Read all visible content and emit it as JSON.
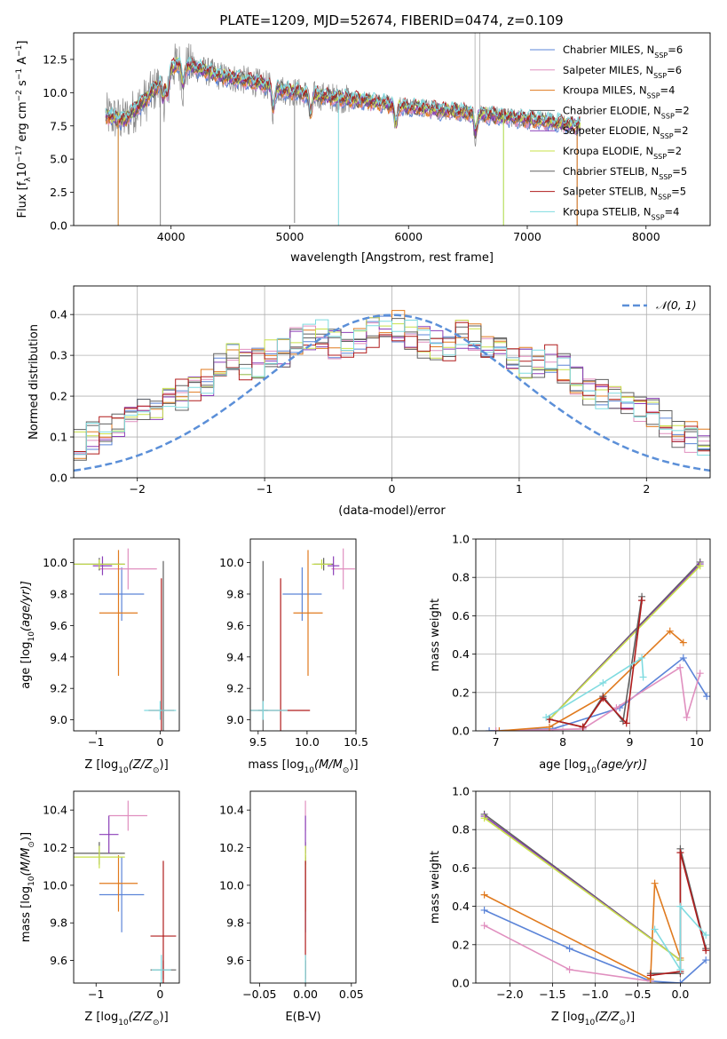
{
  "figure_title": "PLATE=1209, MJD=52674, FIBERID=0474, z=0.109",
  "colors": {
    "chabrier_miles": "#5b84d8",
    "salpeter_miles": "#e08fbf",
    "kroupa_miles": "#e07a1e",
    "chabrier_elodie": "#5f5f5f",
    "salpeter_elodie": "#8b3fb8",
    "kroupa_elodie": "#c8e14a",
    "chabrier_stelib": "#606060",
    "salpeter_stelib": "#b01c1c",
    "kroupa_stelib": "#7fdbe0",
    "data": "#888888",
    "normal": "#5b8fd8"
  },
  "chart_data": [
    {
      "type": "line",
      "panel": "spectrum",
      "xlabel": "wavelength [Angstrom, rest frame]",
      "ylabel_parts": [
        "Flux [f",
        "λ",
        "10",
        "−17",
        " erg cm",
        "−2",
        " s",
        "−1",
        " A",
        "−1",
        "]"
      ],
      "xlim": [
        3180,
        8540
      ],
      "ylim": [
        0,
        14.5
      ],
      "xticks": [
        4000,
        5000,
        6000,
        7000,
        8000
      ],
      "yticks": [
        0.0,
        2.5,
        5.0,
        7.5,
        10.0,
        12.5
      ],
      "grid": false,
      "legend_position": "top-right",
      "legend": [
        {
          "main": "Chabrier MILES, N",
          "sub": "SSP",
          "tail": "=6",
          "key": "chabrier_miles"
        },
        {
          "main": "Salpeter MILES, N",
          "sub": "SSP",
          "tail": "=6",
          "key": "salpeter_miles"
        },
        {
          "main": "Kroupa MILES, N",
          "sub": "SSP",
          "tail": "=4",
          "key": "kroupa_miles"
        },
        {
          "main": "Chabrier ELODIE, N",
          "sub": "SSP",
          "tail": "=2",
          "key": "chabrier_elodie"
        },
        {
          "main": "Salpeter ELODIE, N",
          "sub": "SSP",
          "tail": "=2",
          "key": "salpeter_elodie"
        },
        {
          "main": "Kroupa ELODIE, N",
          "sub": "SSP",
          "tail": "=2",
          "key": "kroupa_elodie"
        },
        {
          "main": "Chabrier STELIB, N",
          "sub": "SSP",
          "tail": "=5",
          "key": "chabrier_stelib"
        },
        {
          "main": "Salpeter STELIB, N",
          "sub": "SSP",
          "tail": "=5",
          "key": "salpeter_stelib"
        },
        {
          "main": "Kroupa STELIB, N",
          "sub": "SSP",
          "tail": "=4",
          "key": "kroupa_stelib"
        }
      ],
      "continuum": {
        "x": [
          3450,
          3600,
          3800,
          3950,
          4050,
          4200,
          4400,
          4700,
          5000,
          5300,
          5600,
          6000,
          6500,
          6800,
          7000,
          7200,
          7450
        ],
        "y": [
          8.3,
          7.9,
          9.6,
          11.2,
          12.2,
          11.9,
          11.3,
          10.8,
          10.1,
          9.7,
          9.4,
          8.9,
          8.5,
          8.2,
          8.0,
          7.8,
          7.5
        ]
      },
      "absorption_x": [
        3934,
        3969,
        4102,
        4861,
        5175,
        5893,
        6563
      ],
      "spikes": [
        {
          "x": 5040,
          "y_min": 0.2
        },
        {
          "x": 5410,
          "y_min": 0.0
        },
        {
          "x": 3910,
          "y_min": 0.0
        },
        {
          "x": 6800,
          "y_min": 0.0
        },
        {
          "x": 7420,
          "y_min": 0.0
        },
        {
          "x": 3555,
          "y_min": 0.0
        }
      ],
      "data_spikes_up": [
        {
          "x": 6560,
          "y_max": 14.5
        },
        {
          "x": 6600,
          "y_max": 14.5
        }
      ]
    },
    {
      "type": "step",
      "panel": "residuals",
      "xlabel": "(data-model)/error",
      "ylabel": "Normed distribution",
      "xlim": [
        -2.5,
        2.5
      ],
      "ylim": [
        0,
        0.47
      ],
      "xticks": [
        -2,
        -1,
        0,
        1,
        2
      ],
      "yticks": [
        0.0,
        0.1,
        0.2,
        0.3,
        0.4
      ],
      "grid": true,
      "legend_position": "top-right",
      "legend_label": "𝒩(0, 1)",
      "bin_edges_start": -2.5,
      "bin_width": 0.1,
      "base_profile": [
        0.033,
        0.04,
        0.05,
        0.082,
        0.11,
        0.1,
        0.098,
        0.113,
        0.135,
        0.15,
        0.166,
        0.218,
        0.238,
        0.19,
        0.208,
        0.237,
        0.25,
        0.295,
        0.29,
        0.27,
        0.258,
        0.265,
        0.305,
        0.325,
        0.36,
        0.383,
        0.38,
        0.36,
        0.38,
        0.395,
        0.43,
        0.405,
        0.375,
        0.365,
        0.375,
        0.36,
        0.365,
        0.34,
        0.325,
        0.305,
        0.278,
        0.27,
        0.26,
        0.255,
        0.24,
        0.215,
        0.18,
        0.17,
        0.155,
        0.13
      ]
    },
    {
      "type": "errorbar",
      "panel": "age_vs_Z",
      "xlabel_parts": [
        "Z [log",
        "10",
        "(Z/Z",
        "⊙",
        ")]"
      ],
      "ylabel_parts": [
        "age  [log",
        "10",
        "(age/yr)]"
      ],
      "xlim": [
        -1.35,
        0.3
      ],
      "ylim": [
        8.93,
        10.15
      ],
      "xticks": [
        -1,
        0
      ],
      "yticks": [
        9.0,
        9.2,
        9.4,
        9.6,
        9.8,
        10.0
      ],
      "points": [
        {
          "key": "chabrier_miles",
          "x": -0.6,
          "xerr": 0.35,
          "y": 9.8,
          "yerr": 0.17
        },
        {
          "key": "salpeter_miles",
          "x": -0.5,
          "xerr": 0.45,
          "y": 9.96,
          "yerr": 0.13
        },
        {
          "key": "kroupa_miles",
          "x": -0.65,
          "xerr": 0.3,
          "y": 9.68,
          "yerr": 0.4
        },
        {
          "key": "chabrier_elodie",
          "x": -0.95,
          "xerr": 0.4,
          "y": 9.99,
          "yerr": 0.04
        },
        {
          "key": "salpeter_elodie",
          "x": -0.9,
          "xerr": 0.15,
          "y": 9.98,
          "yerr": 0.06
        },
        {
          "key": "kroupa_elodie",
          "x": -0.95,
          "xerr": 0.4,
          "y": 9.99,
          "yerr": 0.03
        },
        {
          "key": "chabrier_stelib",
          "x": 0.05,
          "xerr": 0.02,
          "y": 9.06,
          "yerr": 0.95
        },
        {
          "key": "salpeter_stelib",
          "x": 0.02,
          "xerr": 0.2,
          "y": 9.06,
          "yerr": 0.84
        },
        {
          "key": "kroupa_stelib",
          "x": 0.0,
          "xerr": 0.25,
          "y": 9.06,
          "yerr": 0.06
        }
      ]
    },
    {
      "type": "errorbar",
      "panel": "age_vs_mass",
      "xlabel_parts": [
        "mass [log",
        "10",
        "(M/M",
        "⊙",
        ")]"
      ],
      "xlim": [
        9.42,
        10.5
      ],
      "ylim": [
        8.93,
        10.15
      ],
      "xticks": [
        9.5,
        10.0,
        10.5
      ],
      "xtick_labels": [
        "9.5",
        "10.0",
        "10.5"
      ],
      "yticks": [
        9.0,
        9.2,
        9.4,
        9.6,
        9.8,
        10.0
      ],
      "points": [
        {
          "key": "chabrier_miles",
          "x": 9.95,
          "xerr": 0.2,
          "y": 9.8,
          "yerr": 0.17
        },
        {
          "key": "salpeter_miles",
          "x": 10.37,
          "xerr": 0.12,
          "y": 9.96,
          "yerr": 0.13
        },
        {
          "key": "kroupa_miles",
          "x": 10.01,
          "xerr": 0.15,
          "y": 9.68,
          "yerr": 0.4
        },
        {
          "key": "chabrier_elodie",
          "x": 10.17,
          "xerr": 0.1,
          "y": 9.99,
          "yerr": 0.04
        },
        {
          "key": "salpeter_elodie",
          "x": 10.27,
          "xerr": 0.06,
          "y": 9.98,
          "yerr": 0.06
        },
        {
          "key": "kroupa_elodie",
          "x": 10.15,
          "xerr": 0.1,
          "y": 9.99,
          "yerr": 0.03
        },
        {
          "key": "chabrier_stelib",
          "x": 9.55,
          "xerr": 0.05,
          "y": 9.06,
          "yerr": 0.95
        },
        {
          "key": "salpeter_stelib",
          "x": 9.73,
          "xerr": 0.3,
          "y": 9.06,
          "yerr": 0.84
        },
        {
          "key": "kroupa_stelib",
          "x": 9.55,
          "xerr": 0.25,
          "y": 9.06,
          "yerr": 0.06
        }
      ]
    },
    {
      "type": "line",
      "panel": "mass_weight_vs_age",
      "xlabel_parts": [
        "age  [log",
        "10",
        "(age/yr)]"
      ],
      "ylabel": "mass weight",
      "xlim": [
        6.7,
        10.2
      ],
      "ylim": [
        0,
        1
      ],
      "xticks": [
        7,
        8,
        9,
        10
      ],
      "yticks": [
        0.0,
        0.2,
        0.4,
        0.6,
        0.8,
        1.0
      ],
      "grid": true,
      "series": [
        {
          "key": "chabrier_miles",
          "x": [
            6.9,
            7.85,
            8.85,
            9.8,
            10.15
          ],
          "y": [
            0.0,
            0.01,
            0.12,
            0.38,
            0.18
          ]
        },
        {
          "key": "salpeter_miles",
          "x": [
            7.0,
            8.3,
            8.8,
            9.75,
            9.85,
            10.05
          ],
          "y": [
            0.0,
            0.01,
            0.12,
            0.33,
            0.07,
            0.3
          ]
        },
        {
          "key": "kroupa_miles",
          "x": [
            7.05,
            7.8,
            8.6,
            9.6,
            9.8
          ],
          "y": [
            0.0,
            0.02,
            0.18,
            0.52,
            0.46
          ]
        },
        {
          "key": "chabrier_elodie",
          "x": [
            7.8,
            10.05
          ],
          "y": [
            0.06,
            0.88
          ]
        },
        {
          "key": "salpeter_elodie",
          "x": [
            7.8,
            10.05
          ],
          "y": [
            0.06,
            0.87
          ]
        },
        {
          "key": "kroupa_elodie",
          "x": [
            7.8,
            10.05
          ],
          "y": [
            0.06,
            0.86
          ]
        },
        {
          "key": "chabrier_stelib",
          "x": [
            7.8,
            8.3,
            8.6,
            8.9,
            9.18
          ],
          "y": [
            0.06,
            0.02,
            0.18,
            0.05,
            0.7
          ]
        },
        {
          "key": "salpeter_stelib",
          "x": [
            7.8,
            8.3,
            8.6,
            8.95,
            9.18
          ],
          "y": [
            0.06,
            0.02,
            0.17,
            0.04,
            0.68
          ]
        },
        {
          "key": "kroupa_stelib",
          "x": [
            7.75,
            8.6,
            9.18,
            9.2
          ],
          "y": [
            0.07,
            0.25,
            0.38,
            0.28
          ]
        }
      ]
    },
    {
      "type": "errorbar",
      "panel": "mass_vs_Z",
      "xlabel_parts": [
        "Z [log",
        "10",
        "(Z/Z",
        "⊙",
        ")]"
      ],
      "ylabel_parts": [
        "mass [log",
        "10",
        "(M/M",
        "⊙",
        ")]"
      ],
      "xlim": [
        -1.35,
        0.3
      ],
      "ylim": [
        9.48,
        10.5
      ],
      "xticks": [
        -1,
        0
      ],
      "yticks": [
        9.6,
        9.8,
        10.0,
        10.2,
        10.4
      ],
      "points": [
        {
          "key": "chabrier_miles",
          "x": -0.6,
          "xerr": 0.35,
          "y": 9.95,
          "yerr": 0.2
        },
        {
          "key": "salpeter_miles",
          "x": -0.5,
          "xerr": 0.3,
          "y": 10.37,
          "yerr": 0.08
        },
        {
          "key": "kroupa_miles",
          "x": -0.65,
          "xerr": 0.3,
          "y": 10.01,
          "yerr": 0.15
        },
        {
          "key": "chabrier_elodie",
          "x": -0.95,
          "xerr": 0.4,
          "y": 10.17,
          "yerr": 0.06
        },
        {
          "key": "salpeter_elodie",
          "x": -0.8,
          "xerr": 0.15,
          "y": 10.27,
          "yerr": 0.1
        },
        {
          "key": "kroupa_elodie",
          "x": -0.95,
          "xerr": 0.4,
          "y": 10.15,
          "yerr": 0.06
        },
        {
          "key": "chabrier_stelib",
          "x": 0.05,
          "xerr": 0.2,
          "y": 9.55,
          "yerr": 0.05
        },
        {
          "key": "salpeter_stelib",
          "x": 0.05,
          "xerr": 0.2,
          "y": 9.73,
          "yerr": 0.4
        },
        {
          "key": "kroupa_stelib",
          "x": 0.02,
          "xerr": 0.15,
          "y": 9.55,
          "yerr": 0.08
        }
      ]
    },
    {
      "type": "errorbar",
      "panel": "mass_vs_ebv",
      "xlabel": "E(B-V)",
      "xlim": [
        -0.06,
        0.055
      ],
      "ylim": [
        9.48,
        10.5
      ],
      "xticks": [
        -0.05,
        0.0,
        0.05
      ],
      "xtick_labels": [
        "−0.05",
        "0.00",
        "0.05"
      ],
      "yticks": [
        9.6,
        9.8,
        10.0,
        10.2,
        10.4
      ],
      "points": [
        {
          "key": "chabrier_miles",
          "x": 0.0,
          "xerr": 0.0,
          "y": 9.95,
          "yerr": 0.2
        },
        {
          "key": "salpeter_miles",
          "x": 0.0,
          "xerr": 0.0,
          "y": 10.37,
          "yerr": 0.08
        },
        {
          "key": "kroupa_miles",
          "x": 0.0,
          "xerr": 0.0,
          "y": 10.01,
          "yerr": 0.15
        },
        {
          "key": "chabrier_elodie",
          "x": 0.0,
          "xerr": 0.0,
          "y": 10.17,
          "yerr": 0.06
        },
        {
          "key": "salpeter_elodie",
          "x": 0.0,
          "xerr": 0.0,
          "y": 10.27,
          "yerr": 0.1
        },
        {
          "key": "kroupa_elodie",
          "x": 0.0,
          "xerr": 0.0,
          "y": 10.15,
          "yerr": 0.06
        },
        {
          "key": "chabrier_stelib",
          "x": 0.0,
          "xerr": 0.0,
          "y": 9.55,
          "yerr": 0.05
        },
        {
          "key": "salpeter_stelib",
          "x": 0.0,
          "xerr": 0.0,
          "y": 9.73,
          "yerr": 0.4
        },
        {
          "key": "kroupa_stelib",
          "x": 0.0,
          "xerr": 0.0,
          "y": 9.55,
          "yerr": 0.08
        }
      ]
    },
    {
      "type": "line",
      "panel": "mass_weight_vs_Z",
      "xlabel_parts": [
        "Z [log",
        "10",
        "(Z/Z",
        "⊙",
        ")]"
      ],
      "ylabel": "mass weight",
      "xlim": [
        -2.4,
        0.35
      ],
      "ylim": [
        0,
        1
      ],
      "xticks": [
        -2.0,
        -1.5,
        -1.0,
        -0.5,
        0.0
      ],
      "xtick_labels": [
        "−2.0",
        "−1.5",
        "−1.0",
        "−0.5",
        "0.0"
      ],
      "yticks": [
        0.0,
        0.2,
        0.4,
        0.6,
        0.8,
        1.0
      ],
      "grid": true,
      "series": [
        {
          "key": "chabrier_miles",
          "x": [
            -2.3,
            -1.3,
            -0.35,
            0.0,
            0.3
          ],
          "y": [
            0.38,
            0.18,
            0.01,
            0.0,
            0.12
          ]
        },
        {
          "key": "salpeter_miles",
          "x": [
            -2.3,
            -1.3,
            -0.35
          ],
          "y": [
            0.3,
            0.07,
            0.01
          ]
        },
        {
          "key": "kroupa_miles",
          "x": [
            -2.3,
            -0.35,
            -0.3,
            0.0
          ],
          "y": [
            0.46,
            0.02,
            0.52,
            0.13
          ]
        },
        {
          "key": "chabrier_elodie",
          "x": [
            -2.3,
            0.0
          ],
          "y": [
            0.88,
            0.12
          ]
        },
        {
          "key": "salpeter_elodie",
          "x": [
            -2.3,
            0.0
          ],
          "y": [
            0.87,
            0.12
          ]
        },
        {
          "key": "kroupa_elodie",
          "x": [
            -2.3,
            0.0
          ],
          "y": [
            0.86,
            0.12
          ]
        },
        {
          "key": "chabrier_stelib",
          "x": [
            -0.35,
            0.0,
            0.0,
            0.3
          ],
          "y": [
            0.05,
            0.05,
            0.7,
            0.18
          ]
        },
        {
          "key": "salpeter_stelib",
          "x": [
            -0.35,
            0.0,
            0.0,
            0.3
          ],
          "y": [
            0.04,
            0.06,
            0.68,
            0.17
          ]
        },
        {
          "key": "kroupa_stelib",
          "x": [
            -0.3,
            0.0,
            0.0,
            0.3
          ],
          "y": [
            0.28,
            0.07,
            0.4,
            0.25
          ]
        }
      ]
    }
  ]
}
